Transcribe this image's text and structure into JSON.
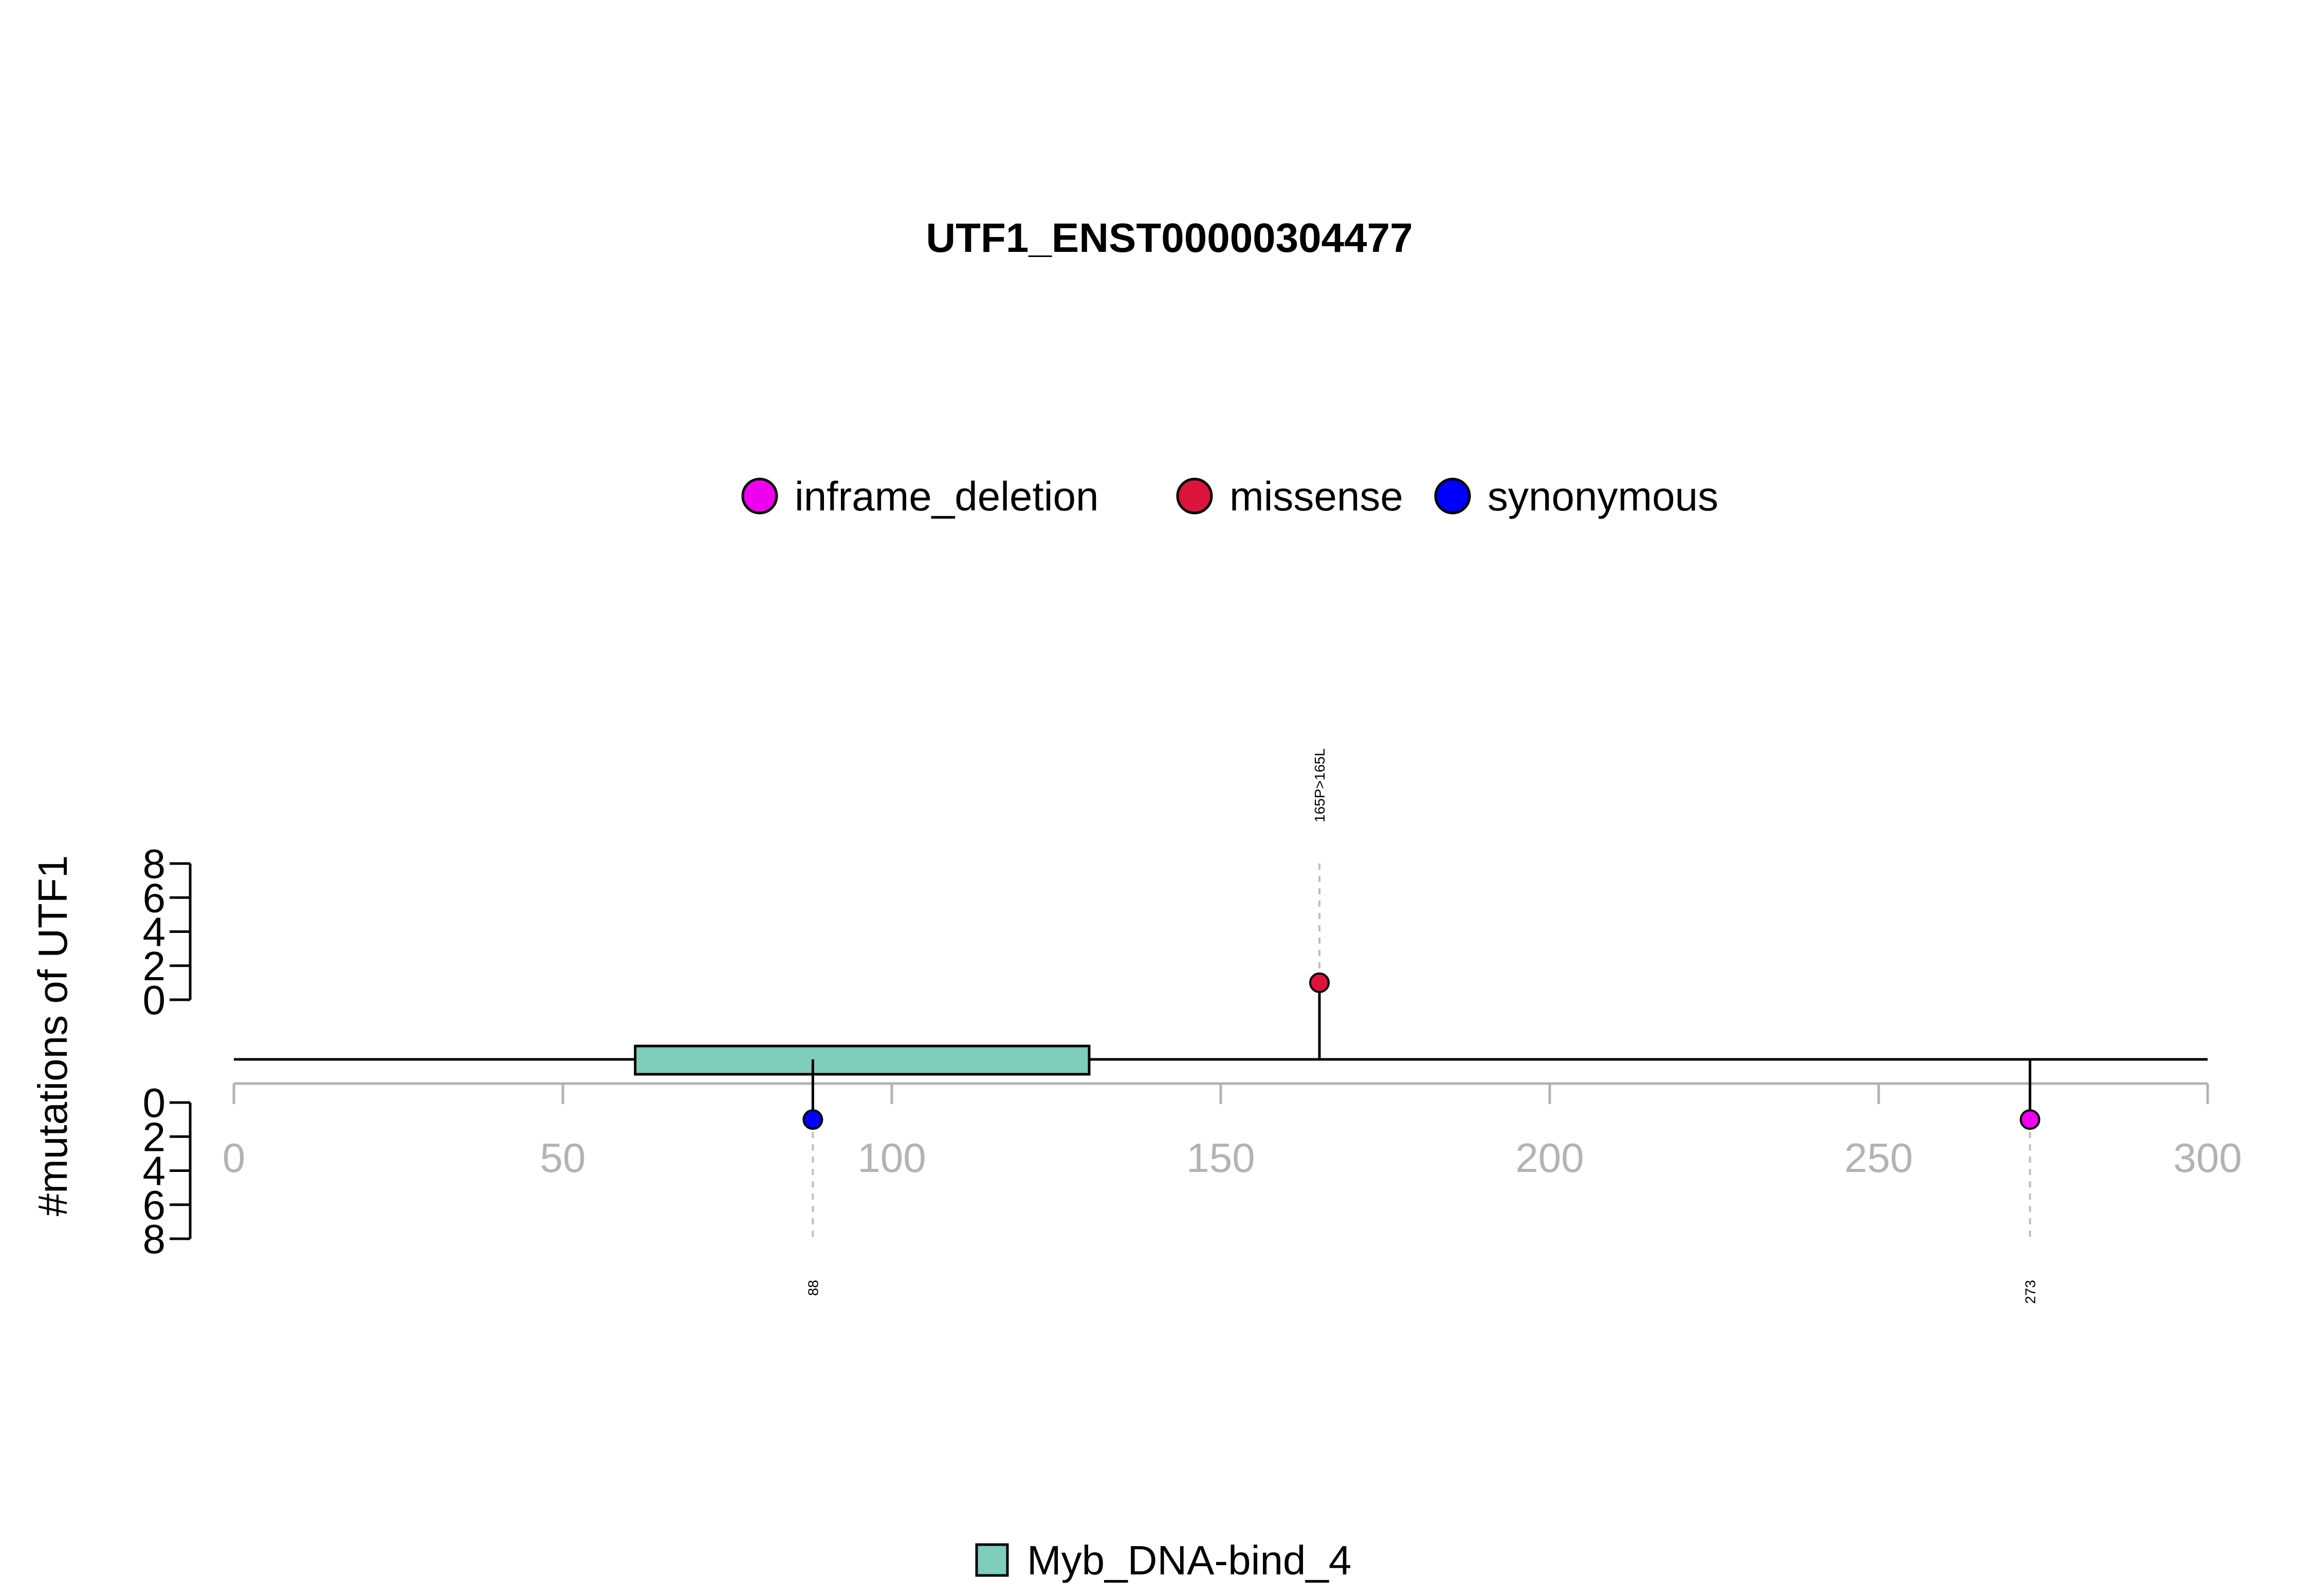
{
  "chart_data": {
    "type": "lollipop",
    "title": "UTF1_ENST00000304477",
    "ylabel": "#mutations of UTF1",
    "xlim": [
      0,
      300
    ],
    "x_ticks": [
      0,
      50,
      100,
      150,
      200,
      250,
      300
    ],
    "ylim_top": [
      0,
      8
    ],
    "ylim_bottom": [
      0,
      8
    ],
    "y_ticks": [
      0,
      2,
      4,
      6,
      8
    ],
    "grid": false,
    "protein_length": 300,
    "legend_top": {
      "placement": "top-center",
      "entries": [
        {
          "name": "inframe_deletion",
          "color": "#EE00EE"
        },
        {
          "name": "missense",
          "color": "#DC143C"
        },
        {
          "name": "synonymous",
          "color": "#0000FF"
        }
      ]
    },
    "legend_bottom": {
      "placement": "bottom-center",
      "entries": [
        {
          "name": "Myb_DNA-bind_4",
          "color": "#7FCDBB"
        }
      ]
    },
    "domains": [
      {
        "name": "Myb_DNA-bind_4",
        "start": 61,
        "end": 130,
        "color": "#7FCDBB"
      }
    ],
    "mutations": [
      {
        "position": 165,
        "count": 1,
        "side": "top",
        "type": "missense",
        "color": "#DC143C",
        "label": "165P>165L"
      },
      {
        "position": 88,
        "count": 1,
        "side": "bottom",
        "type": "synonymous",
        "color": "#0000FF",
        "label": "88"
      },
      {
        "position": 273,
        "count": 1,
        "side": "bottom",
        "type": "inframe_deletion",
        "color": "#EE00EE",
        "label": "273"
      }
    ],
    "colors": {
      "axis": "#000000",
      "x_axis": "#B3B3B3",
      "x_tick_label": "#B3B3B3",
      "guide_line": "#BEBEBE",
      "backbone": "#000000"
    }
  }
}
